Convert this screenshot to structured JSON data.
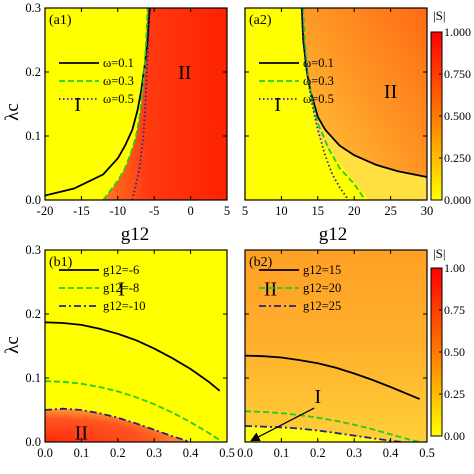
{
  "chart_data": [
    {
      "id": "a1",
      "type": "heatmap",
      "panel_label": "(a1)",
      "xlabel": "g12",
      "ylabel": "λc",
      "xlim": [
        -20,
        5
      ],
      "ylim": [
        0,
        0.3
      ],
      "xticks": [
        "-20",
        "-15",
        "-10",
        "-5",
        "0",
        "5"
      ],
      "xtick_values": [
        -20,
        -15,
        -10,
        -5,
        0,
        5
      ],
      "yticks": [
        "0.0",
        "0.1",
        "0.2",
        "0.3"
      ],
      "ytick_values": [
        0,
        0.1,
        0.2,
        0.3
      ],
      "region_labels": [
        {
          "text": "I",
          "x": -15.5,
          "y": 0.15
        },
        {
          "text": "II",
          "x": -0.8,
          "y": 0.2
        }
      ],
      "legend": [
        {
          "label": "ω=0.1",
          "style": "solid",
          "color": "#000000"
        },
        {
          "label": "ω=0.3",
          "style": "dashed",
          "color": "#22cc22"
        },
        {
          "label": "ω=0.5",
          "style": "dotted",
          "color": "#2222aa"
        }
      ],
      "series": [
        {
          "name": "ω=0.1",
          "x": [
            -20,
            -16,
            -12,
            -10,
            -9,
            -8,
            -7.3,
            -6.8,
            -6.3,
            -5.9,
            -5.6
          ],
          "y": [
            0.007,
            0.018,
            0.04,
            0.065,
            0.085,
            0.11,
            0.14,
            0.17,
            0.21,
            0.25,
            0.3
          ]
        },
        {
          "name": "ω=0.3",
          "x": [
            -12,
            -10,
            -9,
            -8,
            -7.5,
            -7,
            -6.6,
            -6.3,
            -6.1,
            -5.9
          ],
          "y": [
            0.0,
            0.03,
            0.05,
            0.08,
            0.1,
            0.13,
            0.17,
            0.21,
            0.25,
            0.3
          ]
        },
        {
          "name": "ω=0.5",
          "x": [
            -8,
            -7,
            -6.5,
            -6.2,
            -6,
            -5.8,
            -5.7
          ],
          "y": [
            0.0,
            0.05,
            0.1,
            0.15,
            0.2,
            0.25,
            0.3
          ]
        }
      ]
    },
    {
      "id": "a2",
      "type": "heatmap",
      "panel_label": "(a2)",
      "xlabel": "g12",
      "ylabel": "",
      "xlim": [
        5,
        30
      ],
      "ylim": [
        0,
        0.3
      ],
      "xticks": [
        "5",
        "10",
        "15",
        "20",
        "25",
        "30"
      ],
      "xtick_values": [
        5,
        10,
        15,
        20,
        25,
        30
      ],
      "yticks": [],
      "ytick_values": [
        0,
        0.1,
        0.2,
        0.3
      ],
      "region_labels": [
        {
          "text": "I",
          "x": 9.5,
          "y": 0.15
        },
        {
          "text": "II",
          "x": 25,
          "y": 0.17
        }
      ],
      "legend": [
        {
          "label": "ω=0.1",
          "style": "solid",
          "color": "#000000"
        },
        {
          "label": "ω=0.3",
          "style": "dashed",
          "color": "#22cc22"
        },
        {
          "label": "ω=0.5",
          "style": "dotted",
          "color": "#2222aa"
        }
      ],
      "series": [
        {
          "name": "ω=0.1",
          "x": [
            12.8,
            13,
            13.5,
            14,
            15,
            16,
            18,
            20,
            23,
            26,
            30
          ],
          "y": [
            0.3,
            0.25,
            0.2,
            0.17,
            0.13,
            0.11,
            0.085,
            0.07,
            0.055,
            0.045,
            0.036
          ]
        },
        {
          "name": "ω=0.3",
          "x": [
            13,
            13.2,
            13.6,
            14.3,
            15,
            16.5,
            18,
            20,
            21.5
          ],
          "y": [
            0.3,
            0.25,
            0.2,
            0.15,
            0.12,
            0.08,
            0.05,
            0.025,
            0.0
          ]
        },
        {
          "name": "ω=0.5",
          "x": [
            12.8,
            13,
            13.5,
            14.2,
            15,
            16,
            17,
            18,
            19.2
          ],
          "y": [
            0.3,
            0.25,
            0.2,
            0.15,
            0.11,
            0.07,
            0.04,
            0.02,
            0.0
          ]
        }
      ]
    },
    {
      "id": "b1",
      "type": "heatmap",
      "panel_label": "(b1)",
      "xlabel": "",
      "ylabel": "λc",
      "xlim": [
        0,
        0.5
      ],
      "ylim": [
        0,
        0.3
      ],
      "xticks": [
        "0.0",
        "0.1",
        "0.2",
        "0.3",
        "0.4",
        "0.5"
      ],
      "xtick_values": [
        0,
        0.1,
        0.2,
        0.3,
        0.4,
        0.5
      ],
      "yticks": [
        "0.0",
        "0.1",
        "0.2",
        "0.3"
      ],
      "ytick_values": [
        0,
        0.1,
        0.2,
        0.3
      ],
      "region_labels": [
        {
          "text": "I",
          "x": 0.21,
          "y": 0.24
        },
        {
          "text": "II",
          "x": 0.1,
          "y": 0.015
        }
      ],
      "legend": [
        {
          "label": "g12=-6",
          "style": "solid",
          "color": "#000000"
        },
        {
          "label": "g12=-8",
          "style": "dashed",
          "color": "#22cc22"
        },
        {
          "label": "g12=-10",
          "style": "dashdot",
          "color": "#222288"
        }
      ],
      "series": [
        {
          "name": "g12=-6",
          "x": [
            0,
            0.05,
            0.1,
            0.15,
            0.2,
            0.25,
            0.3,
            0.35,
            0.4,
            0.45,
            0.48
          ],
          "y": [
            0.187,
            0.186,
            0.183,
            0.177,
            0.169,
            0.159,
            0.146,
            0.131,
            0.114,
            0.094,
            0.08
          ]
        },
        {
          "name": "g12=-8",
          "x": [
            0,
            0.05,
            0.1,
            0.15,
            0.2,
            0.25,
            0.3,
            0.35,
            0.4,
            0.45,
            0.48
          ],
          "y": [
            0.095,
            0.094,
            0.091,
            0.086,
            0.079,
            0.07,
            0.059,
            0.046,
            0.031,
            0.014,
            0.003
          ]
        },
        {
          "name": "g12=-10",
          "x": [
            0,
            0.05,
            0.1,
            0.15,
            0.2,
            0.25,
            0.3,
            0.35,
            0.4
          ],
          "y": [
            0.05,
            0.052,
            0.05,
            0.045,
            0.038,
            0.029,
            0.019,
            0.009,
            0.0
          ]
        }
      ]
    },
    {
      "id": "b2",
      "type": "heatmap",
      "panel_label": "(b2)",
      "xlabel": "",
      "ylabel": "",
      "xlim": [
        0,
        0.5
      ],
      "ylim": [
        0,
        0.3
      ],
      "xticks": [
        "0.0",
        "0.1",
        "0.2",
        "0.3",
        "0.4",
        "0.5"
      ],
      "xtick_values": [
        0,
        0.1,
        0.2,
        0.3,
        0.4,
        0.5
      ],
      "yticks": [],
      "ytick_values": [
        0,
        0.1,
        0.2,
        0.3
      ],
      "region_labels": [
        {
          "text": "II",
          "x": 0.07,
          "y": 0.24
        },
        {
          "text": "I",
          "x": 0.2,
          "y": 0.072
        }
      ],
      "arrow": {
        "from": [
          0.19,
          0.053
        ],
        "to": [
          0.02,
          0.003
        ]
      },
      "legend": [
        {
          "label": "g12=15",
          "style": "solid",
          "color": "#000000"
        },
        {
          "label": "g12=20",
          "style": "dashed",
          "color": "#22cc22"
        },
        {
          "label": "g12=25",
          "style": "dashdot",
          "color": "#222288"
        }
      ],
      "series": [
        {
          "name": "g12=15",
          "x": [
            0,
            0.05,
            0.1,
            0.15,
            0.2,
            0.25,
            0.3,
            0.35,
            0.4,
            0.45,
            0.48
          ],
          "y": [
            0.135,
            0.134,
            0.132,
            0.128,
            0.123,
            0.116,
            0.107,
            0.097,
            0.086,
            0.074,
            0.067
          ]
        },
        {
          "name": "g12=20",
          "x": [
            0,
            0.05,
            0.1,
            0.15,
            0.2,
            0.25,
            0.3,
            0.35,
            0.4,
            0.45,
            0.48
          ],
          "y": [
            0.048,
            0.047,
            0.045,
            0.042,
            0.038,
            0.033,
            0.027,
            0.02,
            0.012,
            0.004,
            0.0
          ]
        },
        {
          "name": "g12=25",
          "x": [
            0,
            0.05,
            0.1,
            0.15,
            0.2,
            0.25,
            0.3,
            0.35,
            0.4,
            0.43
          ],
          "y": [
            0.025,
            0.024,
            0.023,
            0.021,
            0.018,
            0.014,
            0.01,
            0.006,
            0.002,
            0.0
          ]
        }
      ]
    }
  ],
  "colorbars": [
    {
      "title": "|S|",
      "ticks": [
        "1.000",
        "0.750",
        "0.500",
        "0.250",
        "0.000"
      ],
      "tick_values": [
        1,
        0.75,
        0.5,
        0.25,
        0
      ],
      "colors": [
        "#ff0000",
        "#ff7a00",
        "#ffff00"
      ]
    },
    {
      "title": "|S|",
      "ticks": [
        "1.00",
        "0.75",
        "0.50",
        "0.25",
        "0.00"
      ],
      "tick_values": [
        1,
        0.75,
        0.5,
        0.25,
        0
      ],
      "colors": [
        "#ff0000",
        "#ff7a00",
        "#ffff00"
      ]
    }
  ],
  "colors": {
    "region_I": "#ffff00",
    "region_II_strong": "#ff2a0a",
    "region_II_mid": "#ff8c1a",
    "region_II_light": "#ffc030"
  }
}
